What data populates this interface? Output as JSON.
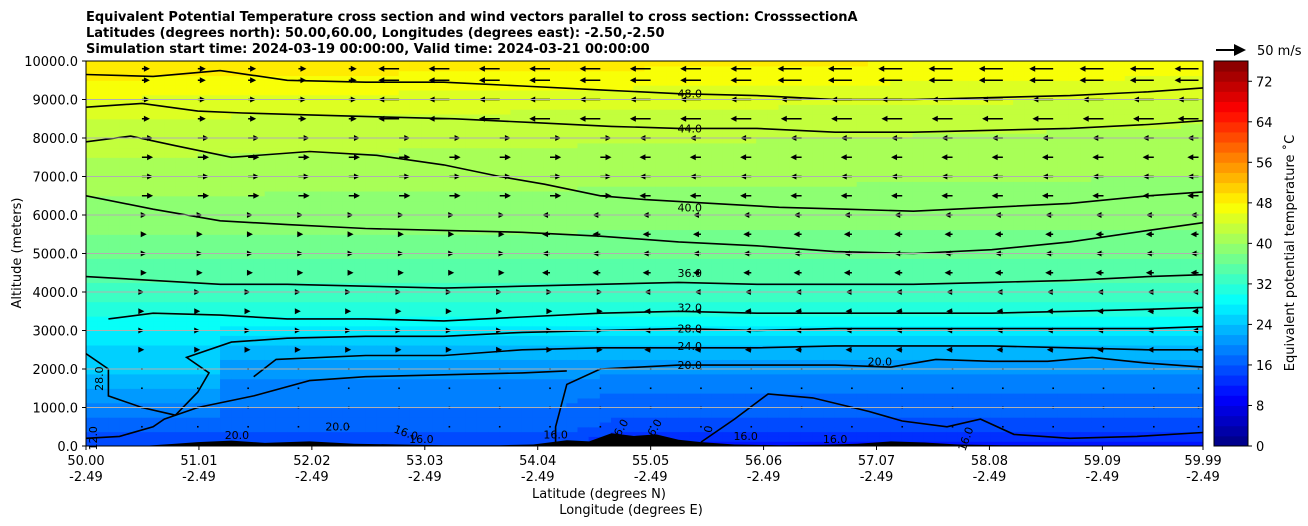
{
  "chart_data": {
    "type": "contourf",
    "title_lines": [
      "Equivalent Potential Temperature cross section and wind vectors parallel to cross section: CrosssectionA",
      "Latitudes (degrees north): 50.00,60.00, Longitudes (degrees east): -2.50,-2.50",
      "Simulation start time: 2024-03-19 00:00:00, Valid time: 2024-03-21 00:00:00"
    ],
    "ylabel": "Altitude (meters)",
    "xlabel_lat": "Latitude (degrees N)",
    "xlabel_lon": "Longitude (degrees E)",
    "xlim": [
      50.0,
      59.99
    ],
    "ylim": [
      0,
      10000
    ],
    "x_ticks": [
      {
        "lat": "50.00",
        "lon": "-2.49",
        "value": 50.0
      },
      {
        "lat": "51.01",
        "lon": "-2.49",
        "value": 51.01
      },
      {
        "lat": "52.02",
        "lon": "-2.49",
        "value": 52.02
      },
      {
        "lat": "53.03",
        "lon": "-2.49",
        "value": 53.03
      },
      {
        "lat": "54.04",
        "lon": "-2.49",
        "value": 54.04
      },
      {
        "lat": "55.05",
        "lon": "-2.49",
        "value": 55.05
      },
      {
        "lat": "56.06",
        "lon": "-2.49",
        "value": 56.06
      },
      {
        "lat": "57.07",
        "lon": "-2.49",
        "value": 57.07
      },
      {
        "lat": "58.08",
        "lon": "-2.49",
        "value": 58.08
      },
      {
        "lat": "59.09",
        "lon": "-2.49",
        "value": 59.09
      },
      {
        "lat": "59.99",
        "lon": "-2.49",
        "value": 59.99
      }
    ],
    "y_ticks": [
      {
        "label": "0.0",
        "value": 0
      },
      {
        "label": "1000.0",
        "value": 1000
      },
      {
        "label": "2000.0",
        "value": 2000
      },
      {
        "label": "3000.0",
        "value": 3000
      },
      {
        "label": "4000.0",
        "value": 4000
      },
      {
        "label": "5000.0",
        "value": 5000
      },
      {
        "label": "6000.0",
        "value": 6000
      },
      {
        "label": "7000.0",
        "value": 7000
      },
      {
        "label": "8000.0",
        "value": 8000
      },
      {
        "label": "9000.0",
        "value": 9000
      },
      {
        "label": "10000.0",
        "value": 10000
      }
    ],
    "horizontal_grid": true,
    "colorbar": {
      "label": "Equivalent potential temperature $^\\circ$C",
      "label_text": "Equivalent potential temperature ˚C",
      "min": 0,
      "max": 76,
      "step": 2,
      "ticks": [
        "0",
        "8",
        "16",
        "24",
        "32",
        "40",
        "48",
        "56",
        "64",
        "72"
      ],
      "colormap": "jet"
    },
    "quiver_key": {
      "label": "50 m/s",
      "speed": 50
    },
    "contours": [
      {
        "label": "48.0",
        "value": 48,
        "label_pos": {
          "x": 55.4,
          "z": 9150
        },
        "points": [
          [
            50.0,
            9650
          ],
          [
            50.6,
            9600
          ],
          [
            51.2,
            9750
          ],
          [
            51.8,
            9500
          ],
          [
            52.5,
            9450
          ],
          [
            53.2,
            9450
          ],
          [
            53.9,
            9350
          ],
          [
            54.6,
            9250
          ],
          [
            55.3,
            9150
          ],
          [
            56.0,
            9100
          ],
          [
            56.7,
            9000
          ],
          [
            57.4,
            9000
          ],
          [
            58.1,
            9050
          ],
          [
            58.8,
            9100
          ],
          [
            59.5,
            9200
          ],
          [
            59.99,
            9300
          ]
        ]
      },
      {
        "label": "44.0",
        "value": 44,
        "label_pos": {
          "x": 55.4,
          "z": 8250
        },
        "points": [
          [
            50.0,
            8800
          ],
          [
            50.5,
            8900
          ],
          [
            51.0,
            8700
          ],
          [
            51.4,
            8650
          ],
          [
            52.0,
            8600
          ],
          [
            52.6,
            8550
          ],
          [
            53.3,
            8500
          ],
          [
            54.0,
            8400
          ],
          [
            54.7,
            8300
          ],
          [
            55.3,
            8250
          ],
          [
            56.0,
            8250
          ],
          [
            56.7,
            8150
          ],
          [
            57.4,
            8150
          ],
          [
            58.1,
            8200
          ],
          [
            58.8,
            8250
          ],
          [
            59.5,
            8350
          ],
          [
            59.99,
            8450
          ]
        ]
      },
      {
        "label": "",
        "value": 42,
        "label_pos": null,
        "points": [
          [
            50.0,
            7900
          ],
          [
            50.4,
            8050
          ],
          [
            50.8,
            7800
          ],
          [
            51.3,
            7500
          ],
          [
            52.0,
            7650
          ],
          [
            52.6,
            7550
          ],
          [
            53.2,
            7300
          ],
          [
            53.7,
            7000
          ],
          [
            54.1,
            6800
          ],
          [
            54.6,
            6500
          ],
          [
            55.0,
            6400
          ],
          [
            55.6,
            6300
          ],
          [
            56.2,
            6200
          ],
          [
            56.8,
            6150
          ],
          [
            57.4,
            6100
          ],
          [
            58.1,
            6200
          ],
          [
            58.8,
            6300
          ],
          [
            59.5,
            6500
          ],
          [
            59.99,
            6600
          ]
        ]
      },
      {
        "label": "40.0",
        "value": 40,
        "label_pos": {
          "x": 55.4,
          "z": 6200
        },
        "points": [
          [
            50.0,
            6500
          ],
          [
            50.6,
            6150
          ],
          [
            51.2,
            5850
          ],
          [
            51.8,
            5750
          ],
          [
            52.5,
            5650
          ],
          [
            53.2,
            5600
          ],
          [
            53.9,
            5550
          ],
          [
            54.6,
            5450
          ],
          [
            55.3,
            5300
          ],
          [
            56.0,
            5200
          ],
          [
            56.7,
            5050
          ],
          [
            57.4,
            5000
          ],
          [
            58.1,
            5100
          ],
          [
            58.8,
            5300
          ],
          [
            59.5,
            5600
          ],
          [
            59.99,
            5800
          ]
        ]
      },
      {
        "label": "36.0",
        "value": 36,
        "label_pos": {
          "x": 55.4,
          "z": 4500
        },
        "points": [
          [
            50.0,
            4400
          ],
          [
            50.6,
            4300
          ],
          [
            51.2,
            4200
          ],
          [
            51.8,
            4200
          ],
          [
            52.5,
            4150
          ],
          [
            53.2,
            4100
          ],
          [
            53.9,
            4150
          ],
          [
            54.6,
            4200
          ],
          [
            55.3,
            4250
          ],
          [
            56.0,
            4200
          ],
          [
            56.7,
            4200
          ],
          [
            57.4,
            4200
          ],
          [
            58.1,
            4250
          ],
          [
            58.8,
            4300
          ],
          [
            59.5,
            4400
          ],
          [
            59.99,
            4450
          ]
        ]
      },
      {
        "label": "32.0",
        "value": 32,
        "label_pos": {
          "x": 55.4,
          "z": 3600
        },
        "points": [
          [
            50.2,
            3300
          ],
          [
            50.6,
            3450
          ],
          [
            51.2,
            3400
          ],
          [
            51.8,
            3300
          ],
          [
            52.5,
            3300
          ],
          [
            53.2,
            3250
          ],
          [
            53.9,
            3350
          ],
          [
            54.6,
            3450
          ],
          [
            55.3,
            3500
          ],
          [
            56.0,
            3450
          ],
          [
            56.7,
            3450
          ],
          [
            57.4,
            3450
          ],
          [
            58.1,
            3450
          ],
          [
            58.8,
            3500
          ],
          [
            59.5,
            3550
          ],
          [
            59.99,
            3600
          ]
        ]
      },
      {
        "label": "28.0",
        "value": 28,
        "label_pos": {
          "x": 55.4,
          "z": 3050
        },
        "points": [
          [
            50.0,
            2400
          ],
          [
            50.2,
            2000
          ],
          [
            50.2,
            1300
          ],
          [
            50.5,
            1000
          ],
          [
            50.8,
            800
          ],
          [
            51.0,
            1400
          ],
          [
            51.1,
            1900
          ],
          [
            50.9,
            2300
          ],
          [
            51.3,
            2700
          ],
          [
            51.8,
            2800
          ],
          [
            52.5,
            2850
          ],
          [
            53.2,
            2850
          ],
          [
            53.9,
            2950
          ],
          [
            54.6,
            3000
          ],
          [
            55.3,
            3050
          ],
          [
            56.0,
            3000
          ],
          [
            56.7,
            3050
          ],
          [
            57.4,
            3050
          ],
          [
            58.1,
            3050
          ],
          [
            58.8,
            3050
          ],
          [
            59.5,
            3050
          ],
          [
            59.99,
            3100
          ]
        ]
      },
      {
        "label": "24.0",
        "value": 24,
        "label_pos": {
          "x": 55.4,
          "z": 2600
        },
        "points": [
          [
            51.5,
            1800
          ],
          [
            51.7,
            2250
          ],
          [
            52.5,
            2350
          ],
          [
            53.2,
            2350
          ],
          [
            53.9,
            2500
          ],
          [
            54.6,
            2550
          ],
          [
            55.3,
            2550
          ],
          [
            56.0,
            2550
          ],
          [
            56.7,
            2600
          ],
          [
            57.4,
            2600
          ],
          [
            58.1,
            2600
          ],
          [
            58.8,
            2550
          ],
          [
            59.5,
            2500
          ],
          [
            59.99,
            2500
          ]
        ]
      },
      {
        "label": "20.0",
        "value": 20,
        "label_pos": {
          "x": 55.4,
          "z": 2100
        },
        "points": [
          [
            54.2,
            0
          ],
          [
            54.2,
            500
          ],
          [
            54.3,
            1600
          ],
          [
            54.6,
            2000
          ],
          [
            55.3,
            2100
          ],
          [
            56.0,
            2100
          ],
          [
            56.7,
            2100
          ],
          [
            57.2,
            2050
          ],
          [
            57.6,
            2250
          ],
          [
            58.1,
            2200
          ],
          [
            58.6,
            2200
          ],
          [
            59.0,
            2300
          ],
          [
            59.5,
            2150
          ],
          [
            59.99,
            2050
          ]
        ]
      },
      {
        "label": "20.0",
        "value": 20,
        "label_pos": {
          "x": 57.1,
          "z": 2200
        },
        "points": []
      },
      {
        "label": "",
        "value": 18,
        "label_pos": null,
        "points": [
          [
            50.0,
            200
          ],
          [
            50.3,
            250
          ],
          [
            50.6,
            500
          ],
          [
            50.7,
            700
          ],
          [
            51.0,
            1000
          ],
          [
            51.5,
            1300
          ],
          [
            52.0,
            1700
          ],
          [
            52.5,
            1800
          ],
          [
            53.2,
            1850
          ],
          [
            53.9,
            1900
          ],
          [
            54.3,
            1950
          ]
        ]
      },
      {
        "label": "",
        "value": 16,
        "label_pos": null,
        "points": [
          [
            55.5,
            100
          ],
          [
            55.8,
            700
          ],
          [
            56.1,
            1350
          ],
          [
            56.5,
            1250
          ],
          [
            57.0,
            900
          ],
          [
            57.3,
            650
          ],
          [
            57.7,
            500
          ],
          [
            58.0,
            700
          ],
          [
            58.3,
            300
          ],
          [
            58.8,
            200
          ],
          [
            59.4,
            250
          ],
          [
            59.99,
            350
          ]
        ]
      }
    ],
    "contour_labels_near_ground": [
      "12.0",
      "28.0",
      "20.0",
      "20.0",
      "16.0",
      "16.0",
      "16.0",
      "16.0",
      "16.0",
      "0",
      "16.0",
      "16.0",
      "16.0"
    ],
    "ground_label_values": [
      12.0,
      28.0,
      20.0,
      20.0,
      16.0,
      16.0,
      16.0,
      16.0,
      16.0,
      0,
      16.0,
      16.0,
      16.0
    ],
    "theta_field_description_bands": [
      {
        "z": 0,
        "value": 14
      },
      {
        "z": 500,
        "value": 17
      },
      {
        "z": 1500,
        "value": 19
      },
      {
        "z": 2300,
        "value": 22
      },
      {
        "z": 3000,
        "value": 27
      },
      {
        "z": 3500,
        "value": 31
      },
      {
        "z": 4500,
        "value": 35
      },
      {
        "z": 5500,
        "value": 38
      },
      {
        "z": 6500,
        "value": 40
      },
      {
        "z": 7500,
        "value": 42
      },
      {
        "z": 8500,
        "value": 44
      },
      {
        "z": 9300,
        "value": 47
      },
      {
        "z": 10000,
        "value": 50
      }
    ],
    "wind_u_mps": {
      "levels_m": [
        500,
        1000,
        1500,
        2000,
        2500,
        3000,
        3500,
        4000,
        4500,
        5000,
        5500,
        6000,
        6500,
        7000,
        7500,
        8000,
        8500,
        9000,
        9500,
        9800
      ],
      "x_lat": [
        50.5,
        51.0,
        51.45,
        51.9,
        52.35,
        52.8,
        53.25,
        53.7,
        54.15,
        54.6,
        55.05,
        55.5,
        55.95,
        56.4,
        56.85,
        57.3,
        57.75,
        58.2,
        58.65,
        59.1,
        59.55,
        59.95
      ],
      "note": "positive = toward higher latitude; values estimated from arrow lengths"
    }
  }
}
